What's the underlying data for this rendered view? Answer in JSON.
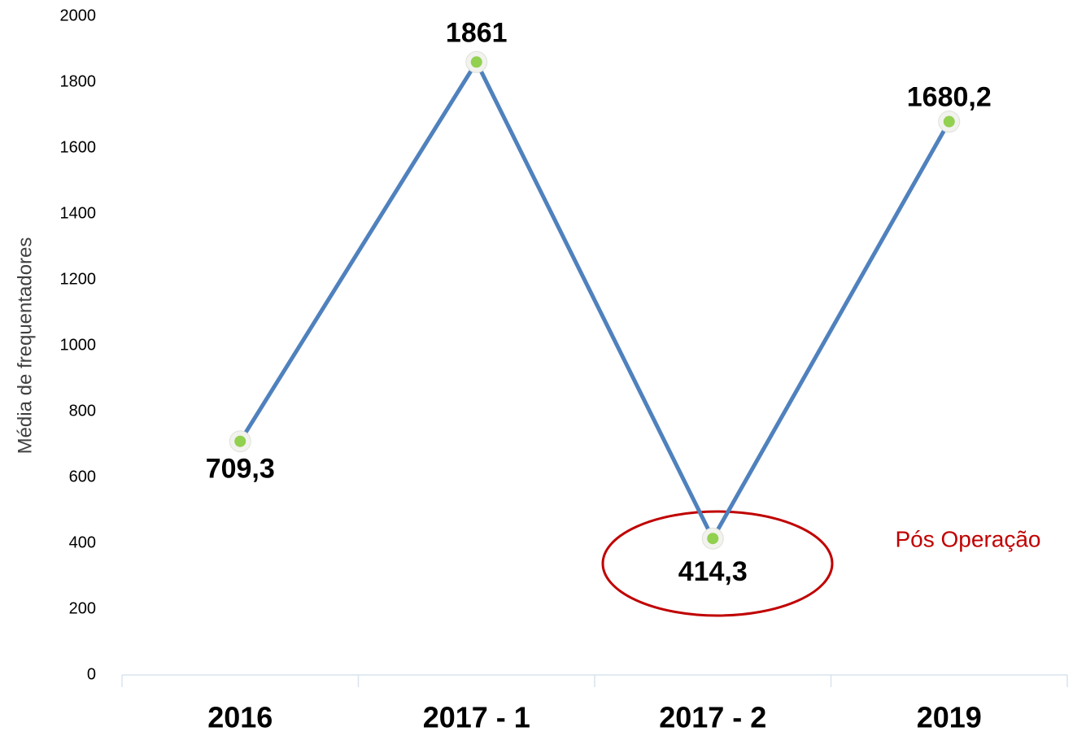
{
  "chart_data": {
    "type": "line",
    "y_axis_label": "Média de frequentadores",
    "categories": [
      "2016",
      "2017 - 1",
      "2017 - 2",
      "2019"
    ],
    "series": [
      {
        "name": "Média de frequentadores",
        "color": "#4f81bd",
        "marker_color": "#92d050",
        "values": [
          709.3,
          1861,
          414.3,
          1680.2
        ],
        "value_labels": [
          "709,3",
          "1861",
          "414,3",
          "1680,2"
        ]
      }
    ],
    "ylim": [
      0,
      2000
    ],
    "yticks": [
      0,
      200,
      400,
      600,
      800,
      1000,
      1200,
      1400,
      1600,
      1800,
      2000
    ],
    "grid": false,
    "annotation": {
      "text": "Pós Operação",
      "color": "#c00000"
    }
  }
}
